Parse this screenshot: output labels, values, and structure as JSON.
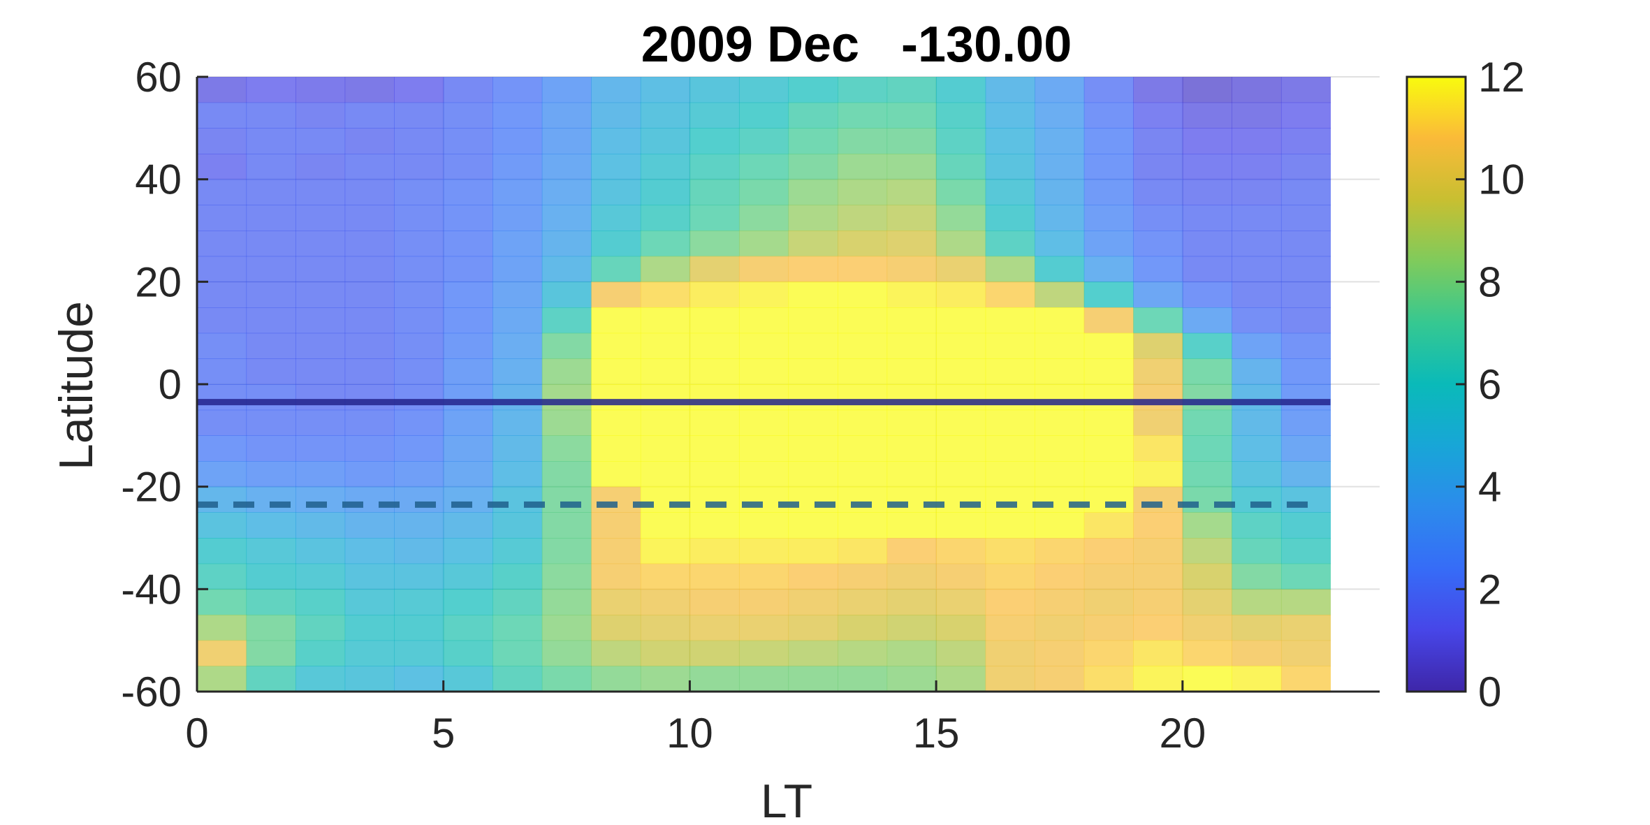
{
  "chart_data": {
    "type": "heatmap",
    "title": "2009 Dec   -130.00",
    "xlabel": "LT",
    "ylabel": "Latitude",
    "xlim": [
      0,
      24
    ],
    "ylim": [
      -60,
      60
    ],
    "x_ticks": [
      0,
      5,
      10,
      15,
      20
    ],
    "y_ticks": [
      60,
      40,
      20,
      0,
      -20,
      -40,
      -60
    ],
    "colorbar": {
      "min": 0,
      "max": 12,
      "ticks": [
        12,
        10,
        8,
        6,
        4,
        2,
        0
      ]
    },
    "colormap": "parula",
    "grid": true,
    "lt_bins": [
      0,
      1,
      2,
      3,
      4,
      5,
      6,
      7,
      8,
      9,
      10,
      11,
      12,
      13,
      14,
      15,
      16,
      17,
      18,
      19,
      20,
      21,
      22
    ],
    "lat_bins": [
      57.5,
      52.5,
      47.5,
      42.5,
      37.5,
      32.5,
      27.5,
      22.5,
      17.5,
      12.5,
      7.5,
      2.5,
      -2.5,
      -7.5,
      -12.5,
      -17.5,
      -22.5,
      -27.5,
      -32.5,
      -37.5,
      -42.5,
      -47.5,
      -52.5,
      -57.5
    ],
    "values": [
      [
        1.0,
        1.2,
        1.1,
        1.0,
        1.2,
        1.8,
        2.2,
        3.0,
        4.2,
        4.7,
        5.2,
        5.6,
        6.0,
        6.4,
        6.6,
        5.8,
        4.4,
        3.4,
        2.0,
        1.0,
        0.6,
        0.8,
        1.0
      ],
      [
        1.8,
        1.8,
        1.6,
        1.8,
        1.8,
        2.0,
        2.4,
        3.2,
        4.4,
        5.0,
        5.6,
        6.0,
        6.8,
        7.2,
        7.2,
        6.2,
        4.6,
        3.6,
        2.2,
        1.4,
        1.0,
        1.0,
        1.2
      ],
      [
        1.6,
        1.8,
        1.8,
        1.6,
        1.8,
        2.0,
        2.4,
        3.2,
        4.6,
        5.2,
        6.0,
        6.4,
        7.2,
        7.6,
        7.6,
        6.4,
        4.8,
        3.8,
        2.4,
        1.6,
        1.2,
        1.2,
        1.4
      ],
      [
        1.4,
        1.8,
        1.6,
        1.8,
        1.8,
        2.0,
        2.6,
        3.4,
        4.8,
        5.6,
        6.4,
        7.0,
        7.6,
        8.2,
        8.2,
        6.8,
        5.0,
        3.8,
        2.4,
        1.6,
        1.4,
        1.4,
        1.6
      ],
      [
        1.8,
        1.8,
        1.8,
        1.8,
        2.0,
        2.2,
        2.8,
        3.6,
        5.0,
        5.8,
        6.8,
        7.4,
        8.2,
        8.6,
        8.8,
        7.4,
        5.4,
        4.0,
        2.6,
        1.8,
        1.6,
        1.6,
        1.8
      ],
      [
        1.8,
        1.8,
        1.8,
        1.8,
        2.0,
        2.2,
        2.8,
        3.8,
        5.4,
        6.2,
        7.0,
        7.8,
        8.6,
        9.0,
        9.2,
        8.0,
        5.8,
        4.2,
        2.8,
        2.0,
        1.8,
        1.8,
        1.8
      ],
      [
        1.8,
        1.8,
        1.8,
        1.8,
        2.0,
        2.2,
        3.0,
        4.0,
        5.8,
        7.0,
        7.8,
        8.4,
        9.2,
        9.6,
        9.8,
        8.6,
        6.4,
        4.6,
        3.0,
        2.2,
        1.8,
        1.8,
        1.8
      ],
      [
        1.8,
        1.8,
        1.8,
        1.8,
        2.0,
        2.2,
        3.0,
        4.4,
        6.8,
        8.6,
        10.0,
        10.6,
        10.8,
        10.8,
        10.6,
        10.2,
        8.6,
        5.8,
        3.8,
        2.4,
        1.8,
        1.8,
        1.8
      ],
      [
        1.8,
        1.8,
        1.8,
        1.8,
        2.0,
        2.4,
        3.2,
        5.2,
        10.6,
        11.2,
        11.6,
        11.8,
        12,
        12,
        11.8,
        11.6,
        11.0,
        9.0,
        6.0,
        3.2,
        2.2,
        1.8,
        1.8
      ],
      [
        1.8,
        1.8,
        1.8,
        1.8,
        2.0,
        2.4,
        3.4,
        6.4,
        12,
        12,
        12,
        12,
        12,
        12,
        12,
        12,
        12,
        12,
        10.6,
        7.0,
        3.4,
        2.0,
        1.8
      ],
      [
        2.0,
        1.8,
        1.8,
        1.8,
        2.0,
        2.6,
        3.6,
        7.6,
        12,
        12,
        12,
        12,
        12,
        12,
        12,
        12,
        12,
        12,
        12,
        9.8,
        6.2,
        3.0,
        2.2
      ],
      [
        2.0,
        1.8,
        1.8,
        1.8,
        2.0,
        2.8,
        3.8,
        8.2,
        12,
        12,
        12,
        12,
        12,
        12,
        12,
        12,
        12,
        12,
        12,
        10.4,
        7.4,
        4.0,
        2.4
      ],
      [
        2.0,
        2.0,
        1.8,
        1.8,
        2.0,
        2.8,
        4.0,
        8.4,
        12,
        12,
        12,
        12,
        12,
        12,
        12,
        12,
        12,
        12,
        12,
        10.6,
        7.6,
        4.4,
        2.6
      ],
      [
        2.0,
        2.0,
        2.0,
        2.0,
        2.2,
        3.0,
        4.2,
        8.2,
        12,
        12,
        12,
        12,
        12,
        12,
        12,
        12,
        12,
        12,
        12,
        10.4,
        7.2,
        4.4,
        2.8
      ],
      [
        2.4,
        2.2,
        2.2,
        2.2,
        2.4,
        3.2,
        4.4,
        7.8,
        12,
        12,
        12,
        12,
        12,
        12,
        12,
        12,
        12,
        12,
        12,
        11.4,
        7.0,
        4.6,
        3.2
      ],
      [
        3.0,
        2.8,
        2.8,
        2.6,
        2.8,
        3.4,
        4.6,
        7.6,
        12,
        12,
        12,
        12,
        12,
        12,
        12,
        12,
        12,
        12,
        12,
        11.8,
        7.2,
        5.0,
        4.0
      ],
      [
        4.2,
        3.8,
        3.6,
        3.4,
        3.4,
        3.8,
        5.0,
        7.6,
        10.6,
        12,
        12,
        12,
        12,
        12,
        12,
        12,
        12,
        12,
        12,
        10.6,
        7.4,
        5.6,
        5.0
      ],
      [
        5.0,
        4.6,
        4.4,
        4.0,
        4.0,
        4.4,
        5.2,
        7.6,
        10.6,
        12,
        12,
        12,
        12,
        12,
        12,
        12,
        12,
        12,
        11.4,
        10.8,
        8.4,
        6.4,
        5.8
      ],
      [
        5.8,
        5.4,
        5.0,
        4.6,
        4.4,
        4.8,
        5.6,
        7.6,
        10.6,
        11.8,
        11.6,
        11.6,
        11.6,
        11.4,
        10.8,
        11.0,
        11.2,
        11.0,
        10.8,
        10.6,
        9.0,
        6.8,
        6.2
      ],
      [
        6.4,
        5.8,
        5.6,
        5.0,
        5.0,
        5.4,
        6.2,
        7.8,
        10.6,
        11.0,
        11.0,
        11.0,
        10.8,
        10.6,
        10.4,
        10.6,
        11.0,
        10.8,
        10.6,
        10.6,
        9.6,
        7.6,
        7.0
      ],
      [
        7.2,
        6.6,
        6.2,
        5.4,
        5.6,
        6.0,
        6.6,
        8.0,
        10.2,
        10.4,
        10.6,
        10.6,
        10.4,
        10.2,
        10.0,
        10.2,
        10.8,
        10.6,
        10.4,
        10.6,
        10.0,
        8.8,
        8.8
      ],
      [
        8.6,
        7.6,
        6.6,
        5.8,
        5.8,
        6.4,
        7.0,
        8.2,
        9.8,
        10.0,
        10.2,
        10.2,
        10.0,
        9.6,
        9.4,
        9.6,
        10.6,
        10.4,
        10.6,
        10.8,
        10.4,
        10.0,
        10.2
      ],
      [
        10.4,
        7.6,
        6.2,
        5.6,
        5.6,
        6.2,
        7.0,
        8.0,
        9.0,
        9.4,
        9.4,
        9.2,
        9.0,
        8.8,
        8.6,
        9.0,
        10.4,
        10.6,
        11.0,
        11.4,
        11.0,
        10.6,
        10.4
      ],
      [
        8.6,
        6.6,
        5.4,
        5.2,
        4.8,
        5.4,
        6.6,
        7.4,
        8.0,
        8.2,
        8.0,
        8.0,
        8.0,
        8.0,
        8.2,
        8.6,
        10.4,
        10.6,
        11.2,
        11.8,
        12,
        11.8,
        11.0
      ]
    ],
    "overlay_lines": [
      {
        "style": "solid",
        "y": -3.5
      },
      {
        "style": "dashed",
        "y": -23.5
      }
    ]
  },
  "colors": {
    "solid_line": "#23238c",
    "dashed_line": "#1f5f8c",
    "axis": "#262626",
    "grid": "#e0e0e0"
  }
}
